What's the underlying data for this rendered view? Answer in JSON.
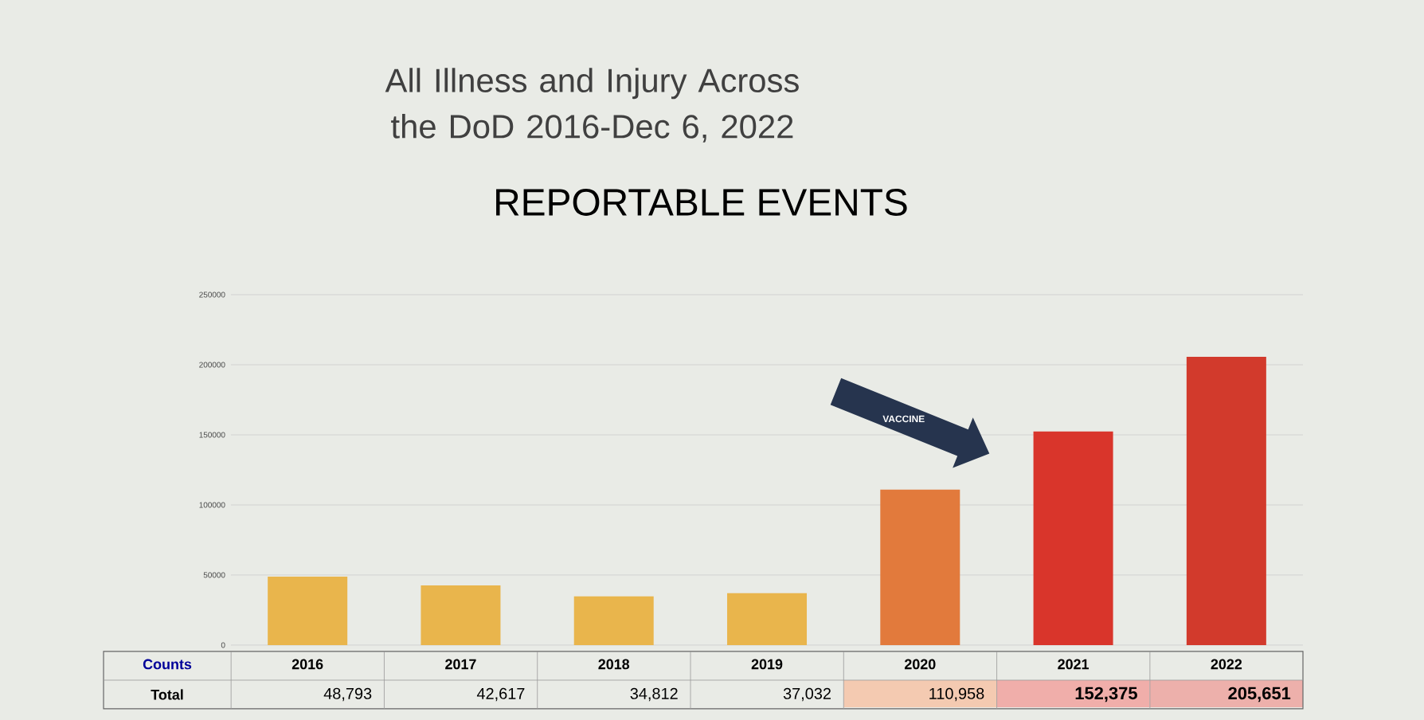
{
  "chart_data": {
    "type": "bar",
    "title": "All Illness and Injury Across the DoD 2016-Dec 6, 2022",
    "subtitle": "REPORTABLE EVENTS",
    "categories": [
      "2016",
      "2017",
      "2018",
      "2019",
      "2020",
      "2021",
      "2022"
    ],
    "values": [
      48793,
      42617,
      34812,
      37032,
      110958,
      152375,
      205651
    ],
    "colors": [
      "#e9b54c",
      "#e9b54c",
      "#e9b54c",
      "#e9b54c",
      "#e27a3c",
      "#d9352b",
      "#d23a2c"
    ],
    "value_labels": [
      "48,793",
      "42,617",
      "34,812",
      "37,032",
      "110,958",
      "152,375",
      "205,651"
    ],
    "ylim": [
      0,
      250000
    ],
    "yticks": [
      0,
      50000,
      100000,
      150000,
      200000,
      250000
    ],
    "grid": "y",
    "annotations": [
      "Counts",
      "Total",
      "VACCINE"
    ]
  }
}
